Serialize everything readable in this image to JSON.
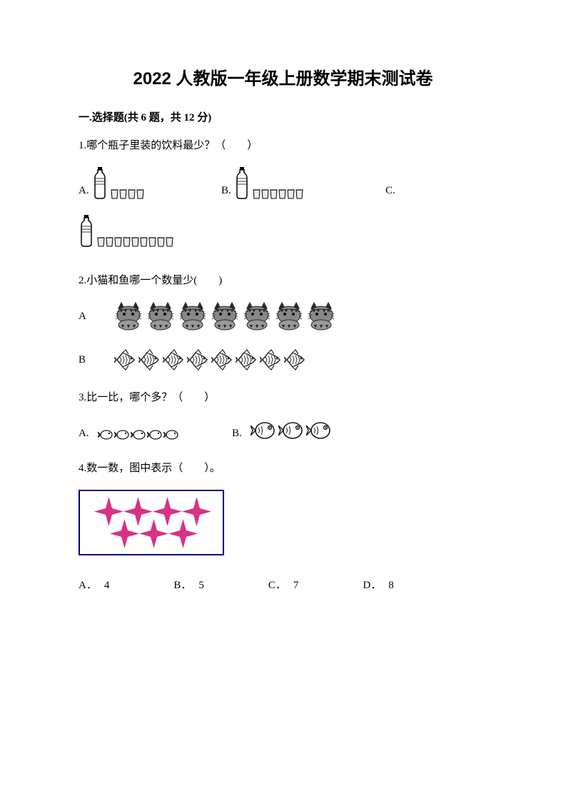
{
  "title": "2022 人教版一年级上册数学期末测试卷",
  "section1": {
    "header": "一.选择题(共 6 题，共 12 分)"
  },
  "q1": {
    "text": "1.哪个瓶子里装的饮料最少？（　　）",
    "optA_label": "A.",
    "optA_cups": 4,
    "optB_label": "B.",
    "optB_cups": 6,
    "optC_label": "C.",
    "optC_cups": 9,
    "bottle_color": "#000000",
    "cup_color": "#000000"
  },
  "q2": {
    "text": "2.小猫和鱼哪一个数量少(　　)",
    "optA_label": "A",
    "optA_count": 7,
    "optB_label": "B",
    "optB_count": 8,
    "cat_color": "#2a2a2a",
    "fish_color": "#2a2a2a"
  },
  "q3": {
    "text": "3.比一比，哪个多？（　　）",
    "optA_label": "A.",
    "optA_count": 5,
    "optB_label": "B.",
    "optB_count": 3,
    "fish_color": "#1a1a1a"
  },
  "q4": {
    "text": "4.数一数，图中表示（　　）。",
    "star_top_count": 4,
    "star_bottom_count": 3,
    "star_color": "#d63384",
    "box_border_color": "#000080",
    "options": {
      "A_label": "A．",
      "A_val": "4",
      "B_label": "B．",
      "B_val": "5",
      "C_label": "C．",
      "C_val": "7",
      "D_label": "D．",
      "D_val": "8"
    }
  }
}
